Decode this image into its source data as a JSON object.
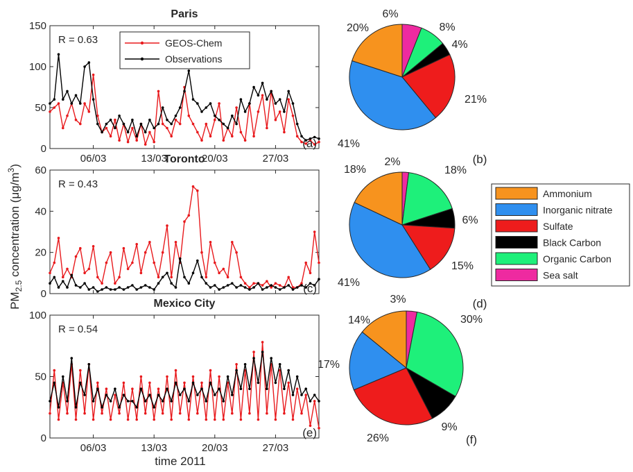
{
  "figure": {
    "ylabel": "PM2.5 concentration (μg/m3)",
    "ylabel_main": "PM",
    "ylabel_sub": "2.5",
    "ylabel_rest": " concentration (μg/m",
    "ylabel_sup": "3",
    "ylabel_close": ")",
    "xlabel": "time 2011"
  },
  "legend_lines": [
    {
      "label": "GEOS-Chem",
      "color": "#e8191c"
    },
    {
      "label": "Observations",
      "color": "#000000"
    }
  ],
  "legend_pie": [
    {
      "label": "Ammonium",
      "color": "#f7931e"
    },
    {
      "label": "Inorganic nitrate",
      "color": "#2f8fef"
    },
    {
      "label": "Sulfate",
      "color": "#ee1c1c"
    },
    {
      "label": "Black Carbon",
      "color": "#000000"
    },
    {
      "label": "Organic Carbon",
      "color": "#1ef07a"
    },
    {
      "label": "Sea salt",
      "color": "#ee2aa0"
    }
  ],
  "chart_data": [
    {
      "type": "line",
      "title": "Paris",
      "panel": "(a)",
      "annotation": "R = 0.63",
      "xlabel": "",
      "ylabel": "PM2.5 concentration (μg/m3)",
      "ylim": [
        0,
        150
      ],
      "yticks": [
        "0",
        "50",
        "100",
        "150"
      ],
      "xlim": [
        0,
        31
      ],
      "xtick_values": [
        5,
        12,
        19,
        26
      ],
      "xtick_labels": [
        "06/03",
        "13/03",
        "20/03",
        "27/03"
      ],
      "series": [
        {
          "name": "GEOS-Chem",
          "color": "#e8191c",
          "x": [
            0,
            0.5,
            1,
            1.5,
            2,
            2.5,
            3,
            3.5,
            4,
            4.5,
            5,
            5.5,
            6,
            6.5,
            7,
            7.5,
            8,
            8.5,
            9,
            9.5,
            10,
            10.5,
            11,
            11.5,
            12,
            12.5,
            13,
            13.5,
            14,
            14.5,
            15,
            15.5,
            16,
            16.5,
            17,
            17.5,
            18,
            18.5,
            19,
            19.5,
            20,
            20.5,
            21,
            21.5,
            22,
            22.5,
            23,
            23.5,
            24,
            24.5,
            25,
            25.5,
            26,
            26.5,
            27,
            27.5,
            28,
            28.5,
            29,
            29.5,
            30,
            30.5,
            31
          ],
          "values": [
            45,
            50,
            55,
            25,
            40,
            55,
            35,
            30,
            55,
            45,
            90,
            40,
            20,
            25,
            15,
            35,
            10,
            30,
            8,
            25,
            10,
            30,
            5,
            20,
            8,
            70,
            30,
            25,
            15,
            35,
            30,
            75,
            40,
            30,
            20,
            10,
            30,
            15,
            35,
            55,
            10,
            25,
            15,
            50,
            20,
            10,
            55,
            15,
            45,
            65,
            25,
            70,
            35,
            45,
            20,
            60,
            40,
            15,
            8,
            6,
            10,
            5,
            8
          ]
        },
        {
          "name": "Observations",
          "color": "#000000",
          "x": [
            0,
            0.5,
            1,
            1.5,
            2,
            2.5,
            3,
            3.5,
            4,
            4.5,
            5,
            5.5,
            6,
            6.5,
            7,
            7.5,
            8,
            8.5,
            9,
            9.5,
            10,
            10.5,
            11,
            11.5,
            12,
            12.5,
            13,
            13.5,
            14,
            14.5,
            15,
            15.5,
            16,
            16.5,
            17,
            17.5,
            18,
            18.5,
            19,
            19.5,
            20,
            20.5,
            21,
            21.5,
            22,
            22.5,
            23,
            23.5,
            24,
            24.5,
            25,
            25.5,
            26,
            26.5,
            27,
            27.5,
            28,
            28.5,
            29,
            29.5,
            30,
            30.5,
            31
          ],
          "values": [
            55,
            60,
            115,
            60,
            70,
            55,
            65,
            55,
            100,
            105,
            60,
            30,
            20,
            30,
            35,
            25,
            40,
            30,
            20,
            35,
            15,
            30,
            20,
            35,
            25,
            30,
            50,
            35,
            30,
            40,
            50,
            70,
            95,
            60,
            55,
            45,
            50,
            55,
            40,
            35,
            30,
            25,
            40,
            30,
            60,
            45,
            55,
            75,
            65,
            80,
            60,
            70,
            55,
            60,
            45,
            70,
            55,
            30,
            15,
            10,
            12,
            14,
            12
          ]
        }
      ]
    },
    {
      "type": "line",
      "title": "Toronto",
      "panel": "(c)",
      "annotation": "R = 0.43",
      "xlabel": "",
      "ylabel": "",
      "ylim": [
        0,
        60
      ],
      "yticks": [
        "0",
        "20",
        "40",
        "60"
      ],
      "xlim": [
        0,
        31
      ],
      "xtick_values": [
        5,
        12,
        19,
        26
      ],
      "xtick_labels": [
        "",
        "",
        "",
        ""
      ],
      "series": [
        {
          "name": "GEOS-Chem",
          "color": "#e8191c",
          "x": [
            0,
            0.5,
            1,
            1.5,
            2,
            2.5,
            3,
            3.5,
            4,
            4.5,
            5,
            5.5,
            6,
            6.5,
            7,
            7.5,
            8,
            8.5,
            9,
            9.5,
            10,
            10.5,
            11,
            11.5,
            12,
            12.5,
            13,
            13.5,
            14,
            14.5,
            15,
            15.5,
            16,
            16.5,
            17,
            17.5,
            18,
            18.5,
            19,
            19.5,
            20,
            20.5,
            21,
            21.5,
            22,
            22.5,
            23,
            23.5,
            24,
            24.5,
            25,
            25.5,
            26,
            26.5,
            27,
            27.5,
            28,
            28.5,
            29,
            29.5,
            30,
            30.5,
            31
          ],
          "values": [
            10,
            15,
            27,
            8,
            12,
            8,
            18,
            22,
            10,
            12,
            23,
            8,
            5,
            15,
            20,
            5,
            8,
            22,
            12,
            15,
            24,
            10,
            20,
            25,
            15,
            8,
            20,
            33,
            8,
            25,
            15,
            35,
            38,
            52,
            50,
            20,
            8,
            25,
            15,
            10,
            12,
            8,
            25,
            20,
            8,
            5,
            3,
            5,
            5,
            4,
            6,
            3,
            5,
            4,
            3,
            8,
            3,
            3,
            5,
            15,
            10,
            30,
            15
          ]
        },
        {
          "name": "Observations",
          "color": "#000000",
          "x": [
            0,
            0.5,
            1,
            1.5,
            2,
            2.5,
            3,
            3.5,
            4,
            4.5,
            5,
            5.5,
            6,
            6.5,
            7,
            7.5,
            8,
            8.5,
            9,
            9.5,
            10,
            10.5,
            11,
            11.5,
            12,
            12.5,
            13,
            13.5,
            14,
            14.5,
            15,
            15.5,
            16,
            16.5,
            17,
            17.5,
            18,
            18.5,
            19,
            19.5,
            20,
            20.5,
            21,
            21.5,
            22,
            22.5,
            23,
            23.5,
            24,
            24.5,
            25,
            25.5,
            26,
            26.5,
            27,
            27.5,
            28,
            28.5,
            29,
            29.5,
            30,
            30.5,
            31
          ],
          "values": [
            5,
            8,
            3,
            6,
            3,
            9,
            4,
            3,
            5,
            2,
            3,
            1,
            2,
            3,
            2,
            2,
            3,
            2,
            3,
            4,
            2,
            3,
            4,
            3,
            2,
            5,
            8,
            10,
            5,
            3,
            17,
            8,
            5,
            10,
            16,
            8,
            5,
            3,
            4,
            2,
            3,
            4,
            5,
            3,
            4,
            3,
            2,
            3,
            5,
            2,
            3,
            4,
            3,
            2,
            3,
            4,
            2,
            3,
            4,
            3,
            5,
            4,
            7
          ]
        }
      ]
    },
    {
      "type": "line",
      "title": "Mexico City",
      "panel": "(e)",
      "annotation": "R = 0.54",
      "xlabel": "time 2011",
      "ylabel": "",
      "ylim": [
        0,
        100
      ],
      "yticks": [
        "0",
        "50",
        "100"
      ],
      "xlim": [
        0,
        31
      ],
      "xtick_values": [
        5,
        12,
        19,
        26
      ],
      "xtick_labels": [
        "06/03",
        "13/03",
        "20/03",
        "27/03"
      ],
      "series": [
        {
          "name": "GEOS-Chem",
          "color": "#e8191c",
          "x": [
            0,
            0.5,
            1,
            1.5,
            2,
            2.5,
            3,
            3.5,
            4,
            4.5,
            5,
            5.5,
            6,
            6.5,
            7,
            7.5,
            8,
            8.5,
            9,
            9.5,
            10,
            10.5,
            11,
            11.5,
            12,
            12.5,
            13,
            13.5,
            14,
            14.5,
            15,
            15.5,
            16,
            16.5,
            17,
            17.5,
            18,
            18.5,
            19,
            19.5,
            20,
            20.5,
            21,
            21.5,
            22,
            22.5,
            23,
            23.5,
            24,
            24.5,
            25,
            25.5,
            26,
            26.5,
            27,
            27.5,
            28,
            28.5,
            29,
            29.5,
            30,
            30.5,
            31
          ],
          "values": [
            20,
            55,
            15,
            45,
            20,
            60,
            15,
            55,
            20,
            60,
            15,
            45,
            20,
            40,
            15,
            35,
            20,
            45,
            15,
            40,
            15,
            50,
            20,
            45,
            15,
            40,
            20,
            50,
            15,
            55,
            20,
            45,
            15,
            50,
            20,
            45,
            15,
            55,
            15,
            50,
            15,
            45,
            20,
            60,
            15,
            55,
            20,
            70,
            15,
            78,
            20,
            60,
            15,
            55,
            20,
            45,
            15,
            40,
            20,
            35,
            10,
            30,
            8
          ]
        },
        {
          "name": "Observations",
          "color": "#000000",
          "x": [
            0,
            0.5,
            1,
            1.5,
            2,
            2.5,
            3,
            3.5,
            4,
            4.5,
            5,
            5.5,
            6,
            6.5,
            7,
            7.5,
            8,
            8.5,
            9,
            9.5,
            10,
            10.5,
            11,
            11.5,
            12,
            12.5,
            13,
            13.5,
            14,
            14.5,
            15,
            15.5,
            16,
            16.5,
            17,
            17.5,
            18,
            18.5,
            19,
            19.5,
            20,
            20.5,
            21,
            21.5,
            22,
            22.5,
            23,
            23.5,
            24,
            24.5,
            25,
            25.5,
            26,
            26.5,
            27,
            27.5,
            28,
            28.5,
            29,
            29.5,
            30,
            30.5,
            31
          ],
          "values": [
            30,
            45,
            25,
            50,
            30,
            65,
            25,
            45,
            35,
            60,
            30,
            40,
            25,
            35,
            30,
            40,
            25,
            35,
            30,
            30,
            25,
            40,
            30,
            35,
            25,
            35,
            30,
            40,
            30,
            45,
            35,
            40,
            30,
            45,
            35,
            40,
            30,
            45,
            35,
            40,
            30,
            50,
            35,
            55,
            40,
            60,
            40,
            65,
            45,
            70,
            40,
            65,
            45,
            60,
            40,
            55,
            35,
            50,
            35,
            40,
            30,
            35,
            30
          ]
        }
      ]
    },
    {
      "type": "pie",
      "title": "",
      "panel": "(b)",
      "categories": [
        "Sea salt",
        "Organic Carbon",
        "Black Carbon",
        "Sulfate",
        "Inorganic nitrate",
        "Ammonium"
      ],
      "values": [
        6,
        8,
        4,
        21,
        41,
        20
      ],
      "labels": [
        "6%",
        "8%",
        "4%",
        "21%",
        "41%",
        "20%"
      ]
    },
    {
      "type": "pie",
      "title": "",
      "panel": "(d)",
      "categories": [
        "Sea salt",
        "Organic Carbon",
        "Black Carbon",
        "Sulfate",
        "Inorganic nitrate",
        "Ammonium"
      ],
      "values": [
        2,
        18,
        6,
        15,
        41,
        18
      ],
      "labels": [
        "2%",
        "18%",
        "6%",
        "15%",
        "41%",
        "18%"
      ]
    },
    {
      "type": "pie",
      "title": "",
      "panel": "(f)",
      "categories": [
        "Sea salt",
        "Organic Carbon",
        "Black Carbon",
        "Sulfate",
        "Inorganic nitrate",
        "Ammonium"
      ],
      "values": [
        3,
        30,
        9,
        26,
        17,
        14
      ],
      "labels": [
        "3%",
        "30%",
        "9%",
        "26%",
        "17%",
        "14%"
      ]
    }
  ]
}
